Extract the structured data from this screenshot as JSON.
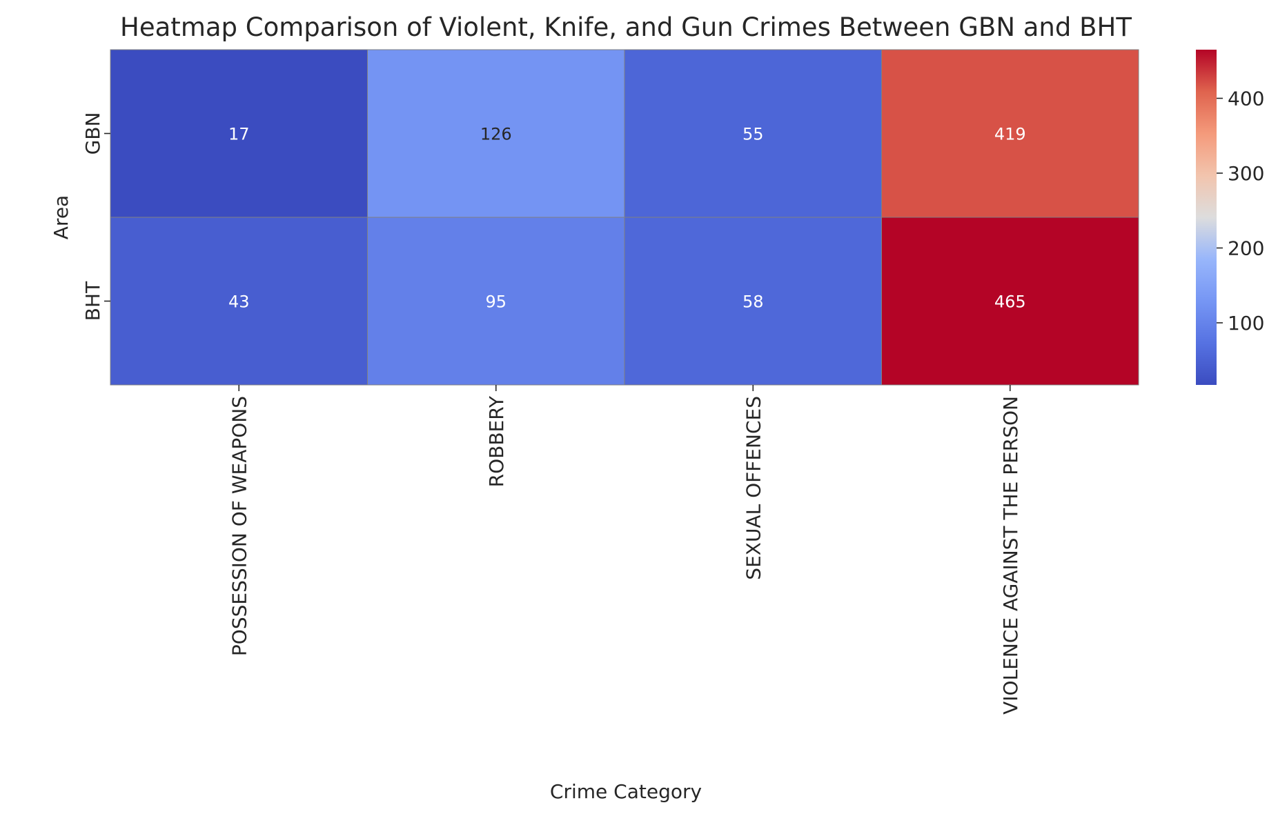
{
  "chart_data": {
    "type": "heatmap",
    "title": "Heatmap Comparison of Violent, Knife, and Gun Crimes Between GBN and BHT",
    "xlabel": "Crime Category",
    "ylabel": "Area",
    "x_categories": [
      "POSSESSION OF WEAPONS",
      "ROBBERY",
      "SEXUAL OFFENCES",
      "VIOLENCE AGAINST THE PERSON"
    ],
    "y_categories": [
      "GBN",
      "BHT"
    ],
    "values": [
      [
        17,
        126,
        55,
        419
      ],
      [
        43,
        95,
        58,
        465
      ]
    ],
    "colormap": "coolwarm",
    "annotated": true,
    "colorbar": {
      "range": [
        17,
        465
      ],
      "ticks": [
        100,
        200,
        300,
        400
      ],
      "tick_labels": [
        "100",
        "200",
        "300",
        "400"
      ]
    },
    "grid": false
  }
}
